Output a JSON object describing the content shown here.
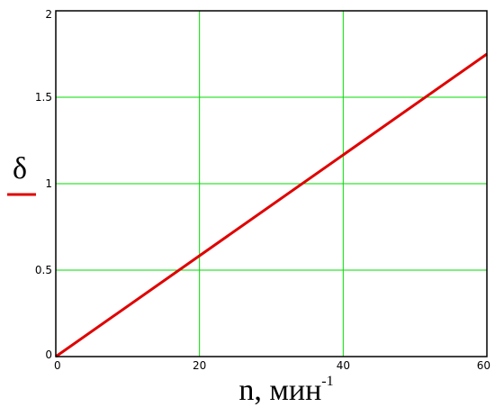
{
  "chart_data": {
    "type": "line",
    "xlabel": "n, мин",
    "xlabel_superscript": "-1",
    "ylabel": "δ",
    "xlim": [
      0,
      60
    ],
    "ylim": [
      0,
      2
    ],
    "x_ticks": [
      0,
      20,
      40,
      60
    ],
    "y_ticks": [
      0,
      0.5,
      1,
      1.5,
      2
    ],
    "x_tick_labels": [
      "0",
      "20",
      "40",
      "60"
    ],
    "y_tick_labels": [
      "0",
      "0.5",
      "1",
      "1.5",
      "2"
    ],
    "grid": true,
    "series": [
      {
        "x": [
          0,
          60
        ],
        "y": [
          0,
          1.75
        ],
        "color": "#e00000"
      }
    ],
    "colors": {
      "grid": "#00dd00",
      "line": "#e00000",
      "frame": "#000000"
    }
  }
}
